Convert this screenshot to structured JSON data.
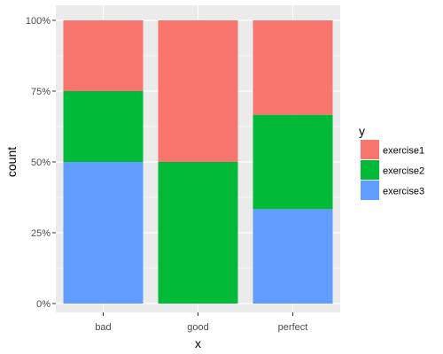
{
  "chart_data": {
    "type": "bar",
    "stacked": true,
    "position": "fill",
    "categories": [
      "bad",
      "good",
      "perfect"
    ],
    "series": [
      {
        "name": "exercise1",
        "color": "#F8766D",
        "values": [
          0.25,
          0.5,
          0.3333
        ]
      },
      {
        "name": "exercise2",
        "color": "#00BA38",
        "values": [
          0.25,
          0.5,
          0.3333
        ]
      },
      {
        "name": "exercise3",
        "color": "#619CFF",
        "values": [
          0.5,
          0.0,
          0.3333
        ]
      }
    ],
    "stack_order_bottom_to_top": [
      "exercise3",
      "exercise2",
      "exercise1"
    ],
    "xlabel": "x",
    "ylabel": "count",
    "ylim": [
      0,
      1
    ],
    "y_ticks": [
      0,
      0.25,
      0.5,
      0.75,
      1
    ],
    "y_tick_labels": [
      "0%",
      "25%",
      "50%",
      "75%",
      "100%"
    ],
    "legend": {
      "title": "y",
      "placement": "right",
      "entries": [
        "exercise1",
        "exercise2",
        "exercise3"
      ]
    },
    "grid": true,
    "panel_background": "#EBEBEB",
    "grid_color": "#FFFFFF"
  }
}
